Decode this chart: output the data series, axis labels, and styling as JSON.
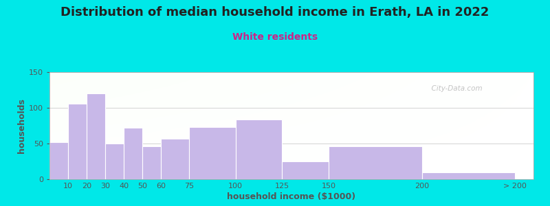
{
  "title": "Distribution of median household income in Erath, LA in 2022",
  "subtitle": "White residents",
  "xlabel": "household income ($1000)",
  "ylabel": "households",
  "bar_left_edges": [
    0,
    10,
    20,
    30,
    40,
    50,
    60,
    75,
    100,
    125,
    150,
    200
  ],
  "bar_widths": [
    10,
    10,
    10,
    10,
    10,
    10,
    15,
    25,
    25,
    25,
    50,
    50
  ],
  "bar_heights": [
    52,
    106,
    120,
    50,
    72,
    46,
    57,
    73,
    84,
    25,
    46,
    10
  ],
  "tick_positions": [
    10,
    20,
    30,
    40,
    50,
    60,
    75,
    100,
    125,
    150,
    200,
    250
  ],
  "tick_labels": [
    "10",
    "20",
    "30",
    "40",
    "50",
    "60",
    "75",
    "100",
    "125",
    "150",
    "200",
    "> 200"
  ],
  "bar_color": "#c8b8e8",
  "bar_edgecolor": "#ffffff",
  "background_outer": "#00e8e8",
  "ylim": [
    0,
    150
  ],
  "yticks": [
    0,
    50,
    100,
    150
  ],
  "title_color": "#222222",
  "subtitle_color": "#cc2288",
  "axis_label_color": "#555555",
  "tick_color": "#555555",
  "watermark": "  City-Data.com",
  "title_fontsize": 13,
  "subtitle_fontsize": 10,
  "tick_fontsize": 8,
  "axis_label_fontsize": 9,
  "xlim": [
    0,
    260
  ]
}
